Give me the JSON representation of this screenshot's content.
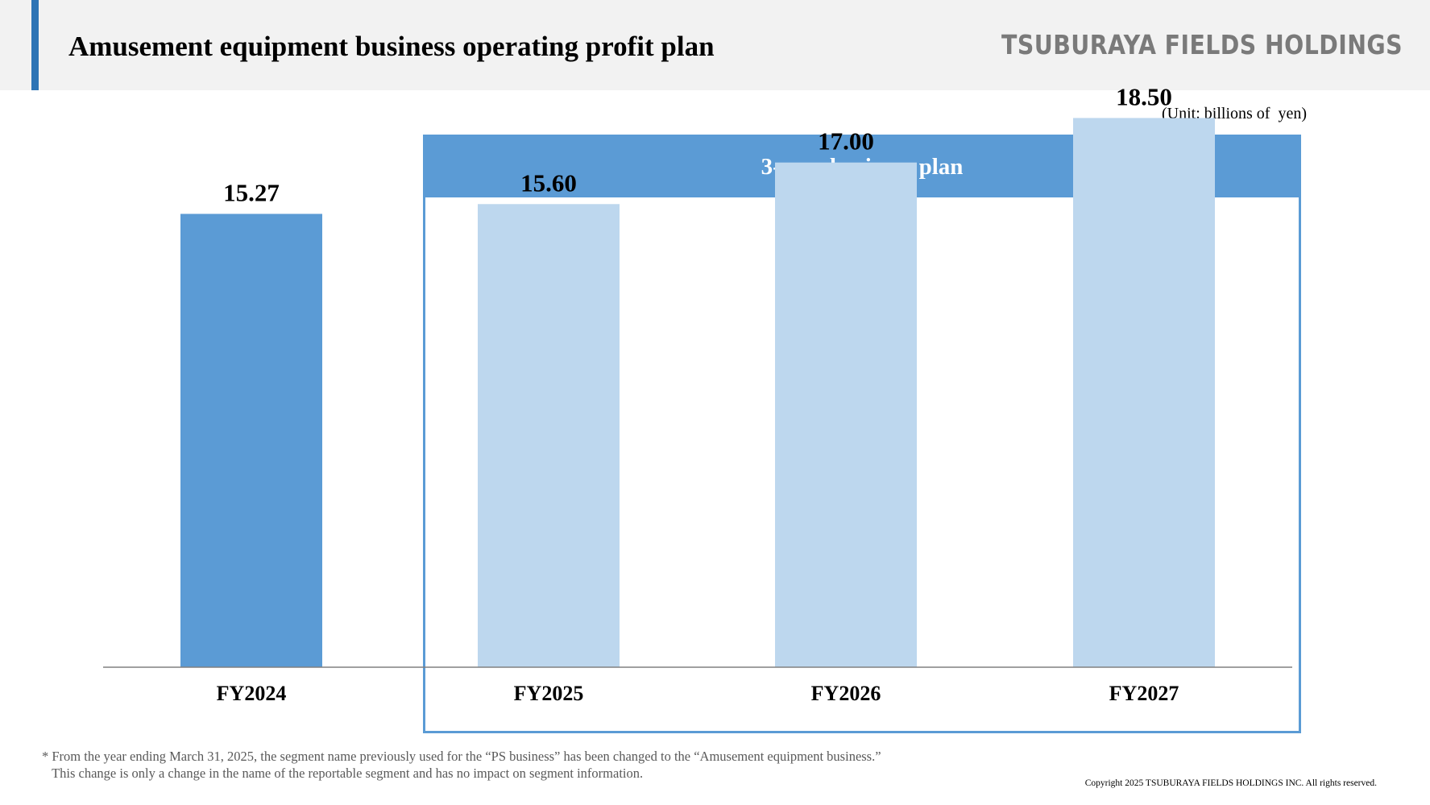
{
  "header": {
    "title": "Amusement equipment business operating profit plan",
    "logo_text": "TSUBURAYA FIELDS HOLDINGS"
  },
  "unit_label": "(Unit: billions of  yen)",
  "plan_box": {
    "label": "3-year business plan"
  },
  "colors": {
    "actual_bar": "#5b9bd5",
    "plan_bar": "#bdd7ee",
    "accent": "#2e74b5",
    "header_bg": "#f2f2f2"
  },
  "chart_data": {
    "type": "bar",
    "categories": [
      "FY2024",
      "FY2025",
      "FY2026",
      "FY2027"
    ],
    "values": [
      15.27,
      15.6,
      17.0,
      18.5
    ],
    "value_labels": [
      "15.27",
      "15.60",
      "17.00",
      "18.50"
    ],
    "bar_kind": [
      "actual",
      "plan",
      "plan",
      "plan"
    ],
    "ylim": [
      0,
      19.0
    ],
    "grid": false,
    "legend": "none"
  },
  "footnote": {
    "line1": "* From the year ending March 31, 2025, the segment name previously used for the “PS business” has been changed to the “Amusement equipment business.”",
    "line2": "   This change is only a change in the name of the reportable segment and has no impact on segment information."
  },
  "copyright": "Copyright 2025 TSUBURAYA FIELDS HOLDINGS INC. All rights reserved."
}
